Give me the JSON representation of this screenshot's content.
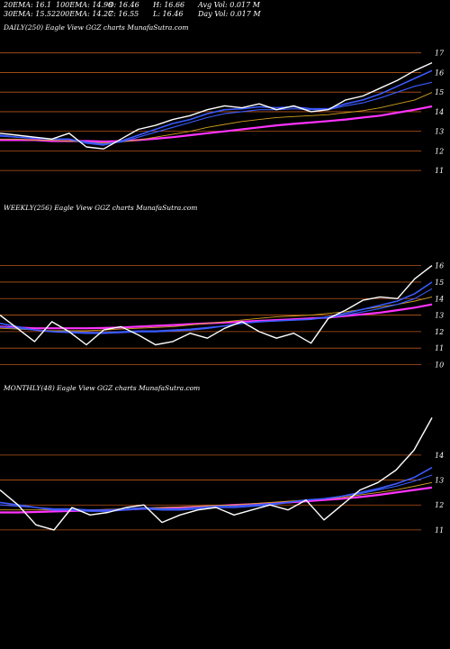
{
  "header": {
    "row1": [
      "20EMA: 16.1",
      "100EMA: 14.98",
      "O: 16.46",
      "H: 16.66",
      "Avg Vol: 0.017 M"
    ],
    "row2": [
      "30EMA: 15.52",
      "200EMA: 14.27",
      "C: 16.55",
      "L: 16.46",
      "Day Vol: 0.017 M"
    ]
  },
  "panels": [
    {
      "id": "daily",
      "title": "DAILY(250) Eagle   View  GGZ charts MunafaSutra.com"
    },
    {
      "id": "weekly",
      "title": "WEEKLY(256) Eagle   View  GGZ charts MunafaSutra.com"
    },
    {
      "id": "monthly",
      "title": "MONTHLY(48) Eagle   View  GGZ charts MunafaSutra.com"
    }
  ],
  "colors": {
    "background": "#000000",
    "price": "#ffffff",
    "ema_fast": "#3b5bff",
    "ema_slow": "#ff33ff",
    "ema_mid": "#d2a020",
    "gridline": "#b85418"
  },
  "chart_data": [
    {
      "type": "line",
      "title": "DAILY(250) Eagle   View  GGZ charts MunafaSutra.com",
      "xlabel": "",
      "ylabel": "",
      "ylim": [
        10.5,
        17.4
      ],
      "yticks": [
        11,
        12,
        13,
        14,
        15,
        16,
        17
      ],
      "grid": true,
      "x": [
        0,
        10,
        20,
        30,
        40,
        50,
        60,
        70,
        80,
        90,
        100,
        110,
        120,
        130,
        140,
        150,
        160,
        170,
        180,
        190,
        200,
        210,
        220,
        230,
        240,
        250
      ],
      "series": [
        {
          "name": "",
          "role": "price",
          "values": [
            12.9,
            12.8,
            12.7,
            12.6,
            12.9,
            12.2,
            12.1,
            12.6,
            13.1,
            13.3,
            13.6,
            13.8,
            14.1,
            14.3,
            14.2,
            14.4,
            14.1,
            14.3,
            14.0,
            14.1,
            14.6,
            14.8,
            15.2,
            15.6,
            16.1,
            16.5
          ]
        },
        {
          "name": "",
          "role": "ema20",
          "values": [
            12.8,
            12.7,
            12.65,
            12.6,
            12.6,
            12.4,
            12.3,
            12.5,
            12.8,
            13.1,
            13.4,
            13.6,
            13.9,
            14.1,
            14.15,
            14.25,
            14.2,
            14.25,
            14.15,
            14.15,
            14.4,
            14.6,
            14.9,
            15.3,
            15.7,
            16.1
          ]
        },
        {
          "name": "",
          "role": "ema30",
          "values": [
            12.75,
            12.7,
            12.65,
            12.6,
            12.6,
            12.45,
            12.35,
            12.45,
            12.7,
            12.95,
            13.2,
            13.45,
            13.7,
            13.9,
            14.0,
            14.1,
            14.1,
            14.15,
            14.1,
            14.1,
            14.3,
            14.45,
            14.7,
            15.0,
            15.3,
            15.5
          ]
        },
        {
          "name": "",
          "role": "ema100",
          "values": [
            12.6,
            12.6,
            12.55,
            12.55,
            12.5,
            12.45,
            12.4,
            12.45,
            12.55,
            12.7,
            12.85,
            13.0,
            13.2,
            13.35,
            13.5,
            13.6,
            13.7,
            13.75,
            13.8,
            13.85,
            13.95,
            14.05,
            14.2,
            14.4,
            14.6,
            14.98
          ]
        },
        {
          "name": "",
          "role": "ema200",
          "values": [
            12.55,
            12.55,
            12.55,
            12.5,
            12.5,
            12.5,
            12.48,
            12.5,
            12.55,
            12.62,
            12.7,
            12.8,
            12.9,
            13.0,
            13.1,
            13.2,
            13.3,
            13.38,
            13.45,
            13.52,
            13.6,
            13.7,
            13.8,
            13.95,
            14.1,
            14.27
          ]
        }
      ]
    },
    {
      "type": "line",
      "title": "WEEKLY(256) Eagle   View  GGZ charts MunafaSutra.com",
      "xlabel": "",
      "ylabel": "",
      "ylim": [
        9.7,
        16.8
      ],
      "yticks": [
        10,
        11,
        12,
        13,
        14,
        15,
        16
      ],
      "grid": true,
      "x": [
        0,
        10,
        20,
        30,
        40,
        50,
        60,
        70,
        80,
        90,
        100,
        110,
        120,
        130,
        140,
        150,
        160,
        170,
        180,
        190,
        200,
        210,
        220,
        230,
        240,
        250
      ],
      "series": [
        {
          "name": "",
          "role": "price",
          "values": [
            13.0,
            12.2,
            11.4,
            12.6,
            12.0,
            11.2,
            12.1,
            12.3,
            11.8,
            11.2,
            11.4,
            11.9,
            11.6,
            12.2,
            12.6,
            12.0,
            11.6,
            11.9,
            11.3,
            12.8,
            13.3,
            13.9,
            14.1,
            14.0,
            15.2,
            16.0
          ]
        },
        {
          "name": "",
          "role": "ema20",
          "values": [
            12.5,
            12.3,
            12.1,
            12.0,
            11.95,
            11.9,
            11.9,
            11.95,
            12.0,
            12.0,
            12.05,
            12.1,
            12.2,
            12.35,
            12.5,
            12.6,
            12.65,
            12.7,
            12.75,
            12.9,
            13.1,
            13.35,
            13.6,
            13.85,
            14.3,
            15.0
          ]
        },
        {
          "name": "",
          "role": "ema30",
          "values": [
            12.3,
            12.2,
            12.1,
            12.0,
            12.0,
            11.95,
            11.95,
            12.0,
            12.05,
            12.05,
            12.1,
            12.15,
            12.25,
            12.35,
            12.5,
            12.6,
            12.65,
            12.7,
            12.75,
            12.85,
            13.0,
            13.2,
            13.4,
            13.65,
            14.0,
            14.6
          ]
        },
        {
          "name": "",
          "role": "ema100",
          "values": [
            12.2,
            12.15,
            12.1,
            12.05,
            12.05,
            12.05,
            12.1,
            12.15,
            12.2,
            12.25,
            12.3,
            12.4,
            12.5,
            12.6,
            12.7,
            12.8,
            12.9,
            12.95,
            13.0,
            13.1,
            13.2,
            13.35,
            13.5,
            13.65,
            13.85,
            14.1
          ]
        },
        {
          "name": "",
          "role": "ema200",
          "values": [
            12.3,
            12.25,
            12.2,
            12.2,
            12.2,
            12.2,
            12.22,
            12.25,
            12.3,
            12.35,
            12.4,
            12.45,
            12.5,
            12.55,
            12.6,
            12.65,
            12.7,
            12.75,
            12.8,
            12.85,
            12.95,
            13.05,
            13.15,
            13.3,
            13.45,
            13.65
          ]
        }
      ]
    },
    {
      "type": "line",
      "title": "MONTHLY(48) Eagle   View  GGZ charts MunafaSutra.com",
      "xlabel": "",
      "ylabel": "",
      "ylim": [
        10.2,
        14.9
      ],
      "yticks": [
        11,
        12,
        13,
        14
      ],
      "grid": true,
      "x": [
        0,
        2,
        4,
        6,
        8,
        10,
        12,
        14,
        16,
        18,
        20,
        22,
        24,
        26,
        28,
        30,
        32,
        34,
        36,
        38,
        40,
        42,
        44,
        46,
        48
      ],
      "series": [
        {
          "name": "",
          "role": "price",
          "values": [
            12.6,
            12.0,
            11.2,
            11.0,
            11.9,
            11.6,
            11.7,
            11.9,
            12.0,
            11.3,
            11.6,
            11.8,
            11.9,
            11.6,
            11.8,
            12.0,
            11.8,
            12.2,
            11.4,
            12.0,
            12.6,
            12.9,
            13.4,
            14.2,
            15.5
          ]
        },
        {
          "name": "",
          "role": "ema20",
          "values": [
            12.1,
            12.0,
            11.9,
            11.8,
            11.8,
            11.75,
            11.75,
            11.8,
            11.85,
            11.8,
            11.8,
            11.85,
            11.9,
            11.9,
            11.95,
            12.0,
            12.1,
            12.2,
            12.25,
            12.35,
            12.5,
            12.65,
            12.85,
            13.1,
            13.5
          ]
        },
        {
          "name": "",
          "role": "ema30",
          "values": [
            12.0,
            11.95,
            11.9,
            11.85,
            11.85,
            11.8,
            11.8,
            11.85,
            11.9,
            11.85,
            11.85,
            11.9,
            11.95,
            11.95,
            12.0,
            12.05,
            12.1,
            12.2,
            12.25,
            12.35,
            12.45,
            12.6,
            12.75,
            12.95,
            13.2
          ]
        },
        {
          "name": "",
          "role": "ema100",
          "values": [
            11.8,
            11.8,
            11.8,
            11.8,
            11.8,
            11.8,
            11.82,
            11.85,
            11.88,
            11.9,
            11.92,
            11.95,
            11.98,
            12.0,
            12.05,
            12.1,
            12.15,
            12.2,
            12.25,
            12.3,
            12.4,
            12.5,
            12.6,
            12.75,
            12.9
          ]
        },
        {
          "name": "",
          "role": "ema200",
          "values": [
            11.7,
            11.7,
            11.72,
            11.74,
            11.76,
            11.78,
            11.8,
            11.82,
            11.85,
            11.88,
            11.9,
            11.93,
            11.96,
            12.0,
            12.03,
            12.07,
            12.1,
            12.15,
            12.2,
            12.25,
            12.32,
            12.4,
            12.5,
            12.6,
            12.7
          ]
        }
      ]
    }
  ]
}
